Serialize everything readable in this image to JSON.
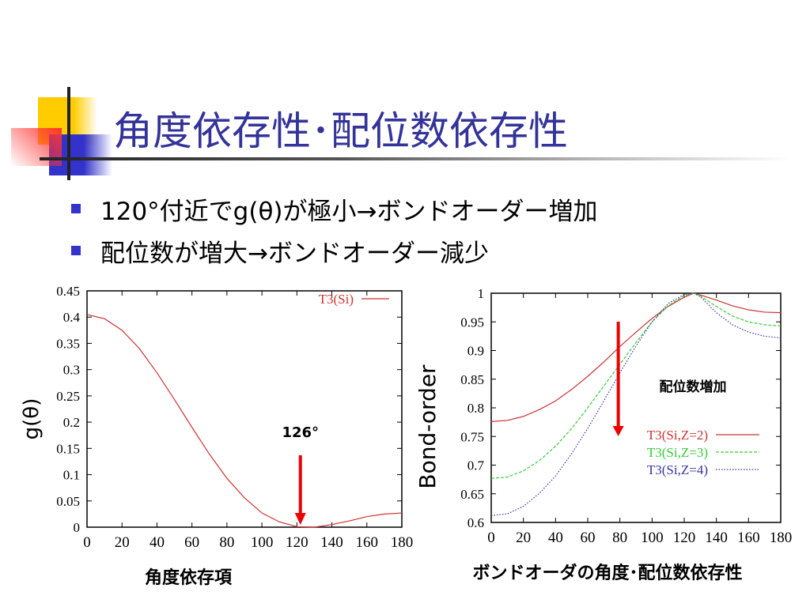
{
  "slide": {
    "title": "角度依存性･配位数依存性",
    "bullets": [
      "120°付近でg(θ)が極小→ボンドオーダー増加",
      "配位数が増大→ボンドオーダー減少"
    ],
    "accent_color": "#333399"
  },
  "chart_data": [
    {
      "type": "line",
      "xlabel": "角度依存項",
      "ylabel": "g(θ)",
      "xlim": [
        0,
        180
      ],
      "ylim": [
        0,
        0.45
      ],
      "xticks": [
        "0",
        "20",
        "40",
        "60",
        "80",
        "100",
        "120",
        "140",
        "160",
        "180"
      ],
      "yticks": [
        "0",
        "0.05",
        "0.1",
        "0.15",
        "0.2",
        "0.25",
        "0.3",
        "0.35",
        "0.4",
        "0.45"
      ],
      "legend_position": "top-right",
      "grid": false,
      "annotation": {
        "text": "126°",
        "arrow_x": 122,
        "color": "#ee0000"
      },
      "x": [
        0,
        10,
        20,
        30,
        40,
        50,
        60,
        70,
        80,
        90,
        100,
        110,
        120,
        130,
        140,
        150,
        160,
        170,
        180
      ],
      "series": [
        {
          "name": "T3(Si)",
          "color": "#cc3333",
          "style": "solid",
          "values": [
            0.405,
            0.397,
            0.375,
            0.34,
            0.294,
            0.243,
            0.19,
            0.139,
            0.093,
            0.056,
            0.027,
            0.01,
            0.001,
            0.0,
            0.005,
            0.012,
            0.02,
            0.025,
            0.027
          ]
        }
      ]
    },
    {
      "type": "line",
      "xlabel": "ボンドオーダの角度･配位数依存性",
      "ylabel": "Bond-order",
      "xlim": [
        0,
        180
      ],
      "ylim": [
        0.6,
        1
      ],
      "xticks": [
        "0",
        "20",
        "40",
        "60",
        "80",
        "100",
        "120",
        "140",
        "160",
        "180"
      ],
      "yticks": [
        "0.6",
        "0.65",
        "0.7",
        "0.75",
        "0.8",
        "0.85",
        "0.9",
        "0.95",
        "1"
      ],
      "legend_position": "right-middle",
      "grid": false,
      "annotation": {
        "text": "配位数増加",
        "arrow_x": 79,
        "color": "#ee0000"
      },
      "x": [
        0,
        10,
        20,
        30,
        40,
        50,
        60,
        70,
        80,
        90,
        100,
        110,
        120,
        126,
        130,
        140,
        150,
        160,
        170,
        180
      ],
      "series": [
        {
          "name": "T3(Si,Z=2)",
          "color": "#cc3333",
          "style": "solid",
          "values": [
            0.776,
            0.778,
            0.785,
            0.797,
            0.812,
            0.832,
            0.855,
            0.88,
            0.907,
            0.932,
            0.956,
            0.977,
            0.993,
            1.0,
            0.997,
            0.988,
            0.978,
            0.971,
            0.967,
            0.966
          ]
        },
        {
          "name": "T3(Si,Z=3)",
          "color": "#33cc33",
          "style": "dashed",
          "values": [
            0.677,
            0.679,
            0.69,
            0.708,
            0.733,
            0.764,
            0.8,
            0.838,
            0.876,
            0.914,
            0.95,
            0.978,
            0.996,
            1.0,
            0.995,
            0.977,
            0.96,
            0.95,
            0.945,
            0.943
          ]
        },
        {
          "name": "T3(Si,Z=4)",
          "color": "#3333aa",
          "style": "dotted",
          "values": [
            0.612,
            0.615,
            0.628,
            0.651,
            0.681,
            0.72,
            0.764,
            0.812,
            0.861,
            0.908,
            0.95,
            0.982,
            0.998,
            1.0,
            0.994,
            0.966,
            0.945,
            0.932,
            0.925,
            0.922
          ]
        }
      ]
    }
  ]
}
